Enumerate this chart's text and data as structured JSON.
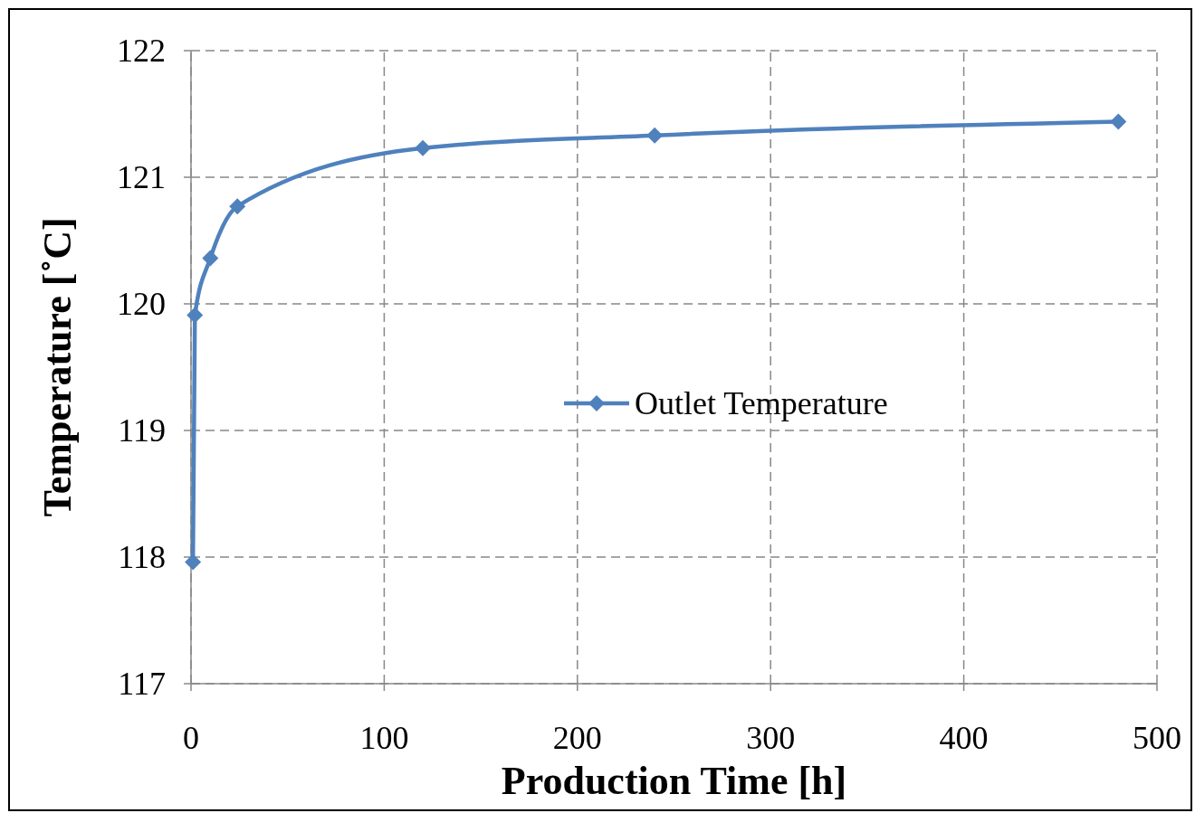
{
  "chart_data": {
    "type": "line",
    "xlabel": "Production Time [h]",
    "ylabel": "Temperature [˚C]",
    "x": [
      1,
      2,
      10,
      24,
      120,
      240,
      480
    ],
    "series": [
      {
        "name": "Outlet Temperature",
        "color": "#4f81bd",
        "values": [
          117.96,
          119.91,
          120.36,
          120.77,
          121.23,
          121.33,
          121.44
        ]
      }
    ],
    "xlim": [
      0,
      500
    ],
    "xticks": [
      0,
      100,
      200,
      300,
      400,
      500
    ],
    "ylim": [
      117,
      122
    ],
    "yticks": [
      117,
      118,
      119,
      120,
      121,
      122
    ],
    "grid": true,
    "legend": "right",
    "marker": "diamond",
    "line_style": "solid"
  }
}
